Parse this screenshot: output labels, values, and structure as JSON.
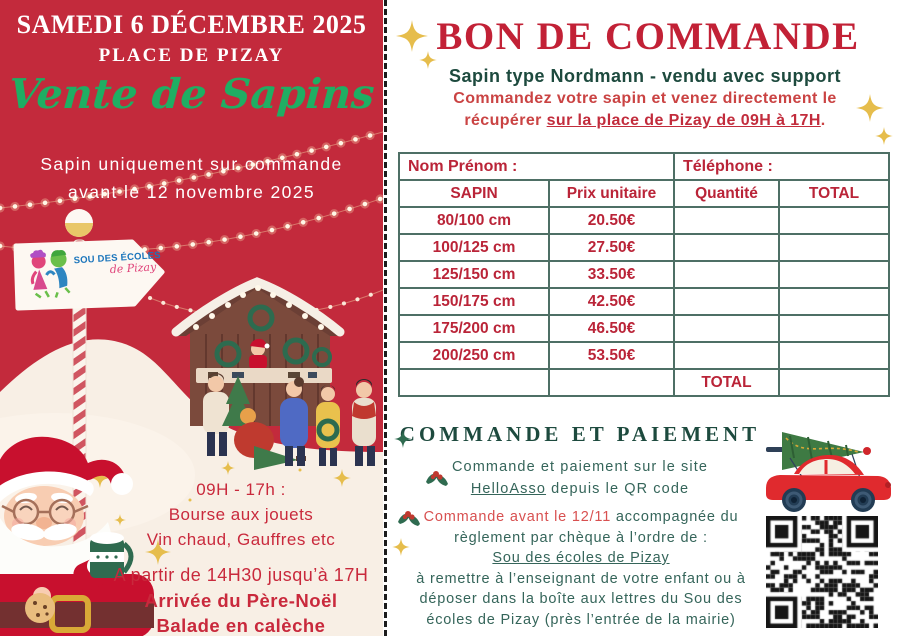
{
  "palette": {
    "panel_red": "#c32a3c",
    "title_red": "#c22136",
    "script_green": "#1fae63",
    "dark_green": "#1d4a3e",
    "paragraph_green": "#35655a",
    "table_border_green": "#4e6f65",
    "table_text_red": "#ba2438",
    "gold": "#e6bd4c"
  },
  "left_panel": {
    "title": "SAMEDI 6 DÉCEMBRE 2025",
    "subtitle": "PLACE DE PIZAY",
    "event_name": "Vente de Sapins",
    "notice_line1": "Sapin uniquement sur commande",
    "notice_line2": "avant le 12 novembre 2025",
    "logo_line1": "SOU DES ÉCOLES",
    "logo_line2": "de Pizay",
    "schedule": {
      "hours": "09H - 17h :",
      "toy_market": "Bourse aux jouets",
      "food": "Vin chaud, Gauffres etc",
      "afternoon": "A partir de 14H30 jusqu’à 17H",
      "santa_arrival": "Arrivée du Père-Noël",
      "carriage_ride": "Balade en calèche"
    },
    "icons": {
      "santa": "santa-claus-illustration",
      "signpost": "arrow-signpost",
      "stall": "christmas-market-stall",
      "lights": "string-lights"
    }
  },
  "right_panel": {
    "title": "BON DE COMMANDE",
    "subtitle": "Sapin type Nordmann - vendu avec support",
    "intro_line1": "Commandez votre sapin et venez directement le",
    "intro_line2_start": "récupérer ",
    "intro_line2_underlined": "sur la place de Pizay de 09H à 17H",
    "intro_line2_end": ".",
    "order_table": {
      "name_label": "Nom Prénom :",
      "phone_label": "Téléphone :",
      "headers": [
        "SAPIN",
        "Prix unitaire",
        "Quantité",
        "TOTAL"
      ],
      "rows": [
        {
          "size": "80/100 cm",
          "price": "20.50€"
        },
        {
          "size": "100/125 cm",
          "price": "27.50€"
        },
        {
          "size": "125/150 cm",
          "price": "33.50€"
        },
        {
          "size": "150/175 cm",
          "price": "42.50€"
        },
        {
          "size": "175/200 cm",
          "price": "46.50€"
        },
        {
          "size": "200/250 cm",
          "price": "53.50€"
        }
      ],
      "total_label": "TOTAL"
    },
    "payment": {
      "heading": "COMMANDE ET PAIEMENT",
      "online_line1": "Commande et paiement sur le site",
      "online_link": "HelloAsso",
      "online_line2_rest": " depuis le QR code",
      "deadline_highlight": "Commande avant le 12/11",
      "deadline_rest": " accompagnée du",
      "cheque_line1": "règlement par chèque à l’ordre de :",
      "payee_name": "Sou des écoles de Pizay",
      "instr_line1": "à remettre à l’enseignant de votre enfant ou à",
      "instr_line2": "déposer dans la boîte aux lettres du Sou des",
      "instr_line3": "écoles de Pizay (près l’entrée de la mairie)"
    },
    "icons": {
      "sparkles": "gold-sparkle",
      "holly": "holly-leaves",
      "car": "car-with-tree-illustration",
      "qr": "qr-code"
    }
  }
}
